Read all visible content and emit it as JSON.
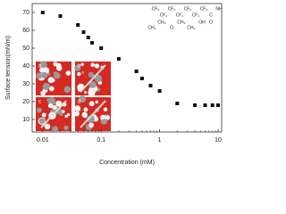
{
  "chart_data": {
    "type": "scatter",
    "x_label": "Concentration (mM)",
    "y_label": "Surface tension(mN/m)",
    "x": [
      0.01,
      0.02,
      0.04,
      0.05,
      0.06,
      0.07,
      0.1,
      0.2,
      0.4,
      0.5,
      0.7,
      1,
      2,
      4,
      6,
      8,
      10
    ],
    "series": [
      {
        "color": "#111111",
        "marker": "square",
        "values": [
          70,
          68,
          63,
          59,
          56,
          53,
          50,
          44,
          37,
          33,
          29,
          26,
          19,
          18,
          18,
          18,
          18
        ]
      }
    ],
    "xlim": [
      0.0066,
      11.5
    ],
    "ylim": [
      3,
      75
    ],
    "x_log": true,
    "xticks": [
      0.01,
      0.1,
      1,
      10
    ],
    "yticks": [
      10,
      20,
      30,
      40,
      50,
      60,
      70
    ],
    "inset_labels": [
      "a",
      "b",
      "c",
      "d"
    ],
    "structure": [
      "CF₃",
      "CF₂",
      "CF₂",
      "CF₂",
      "CF₂",
      "CF₂",
      "CF₂",
      "C",
      "O",
      "NH",
      "CH₂",
      "CH₂",
      "O",
      "CH₂",
      "CH₂",
      "OH"
    ]
  }
}
